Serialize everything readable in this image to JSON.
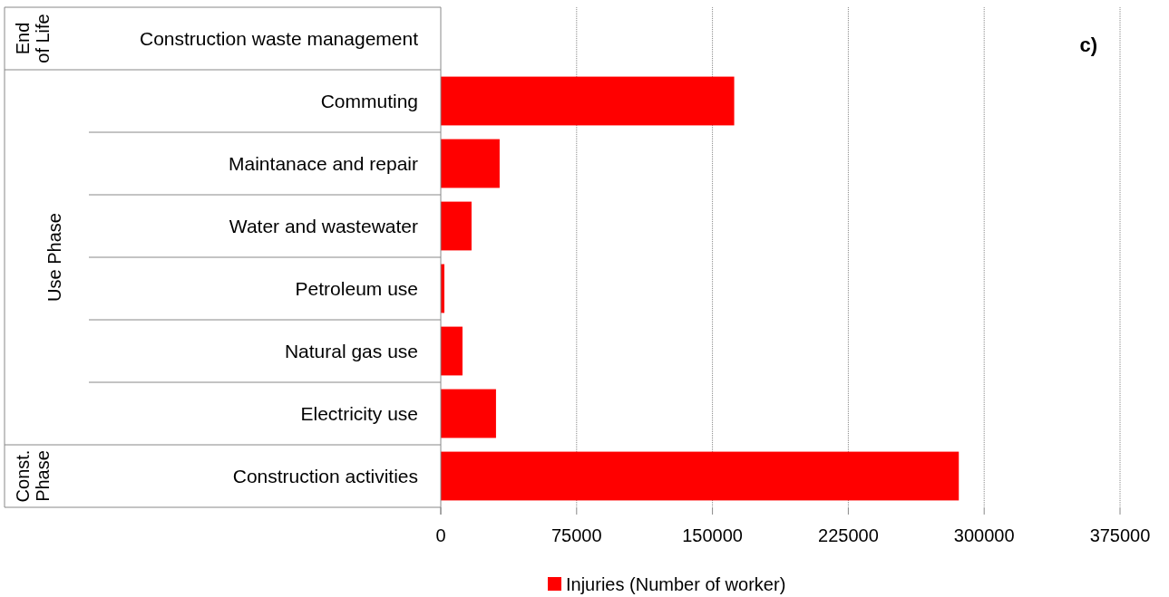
{
  "chart_data": {
    "type": "bar",
    "orientation": "horizontal",
    "categories": [
      "Construction waste management",
      "Commuting",
      "Maintanace and repair",
      "Water and wastewater",
      "Petroleum use",
      "Natural gas use",
      "Electricity use",
      "Construction activities"
    ],
    "series": [
      {
        "name": "Injuries (Number of worker)",
        "color": "#ff0000",
        "values": [
          0,
          162000,
          32500,
          17000,
          2000,
          12000,
          30500,
          286000
        ]
      }
    ],
    "xlim": [
      0,
      375000
    ],
    "xticks": [
      0,
      75000,
      150000,
      225000,
      300000,
      375000
    ],
    "grid": "x",
    "legend": "bottom",
    "annotations": [
      "End of Life",
      "Use Phase",
      "Const. Phase",
      "c)"
    ]
  }
}
